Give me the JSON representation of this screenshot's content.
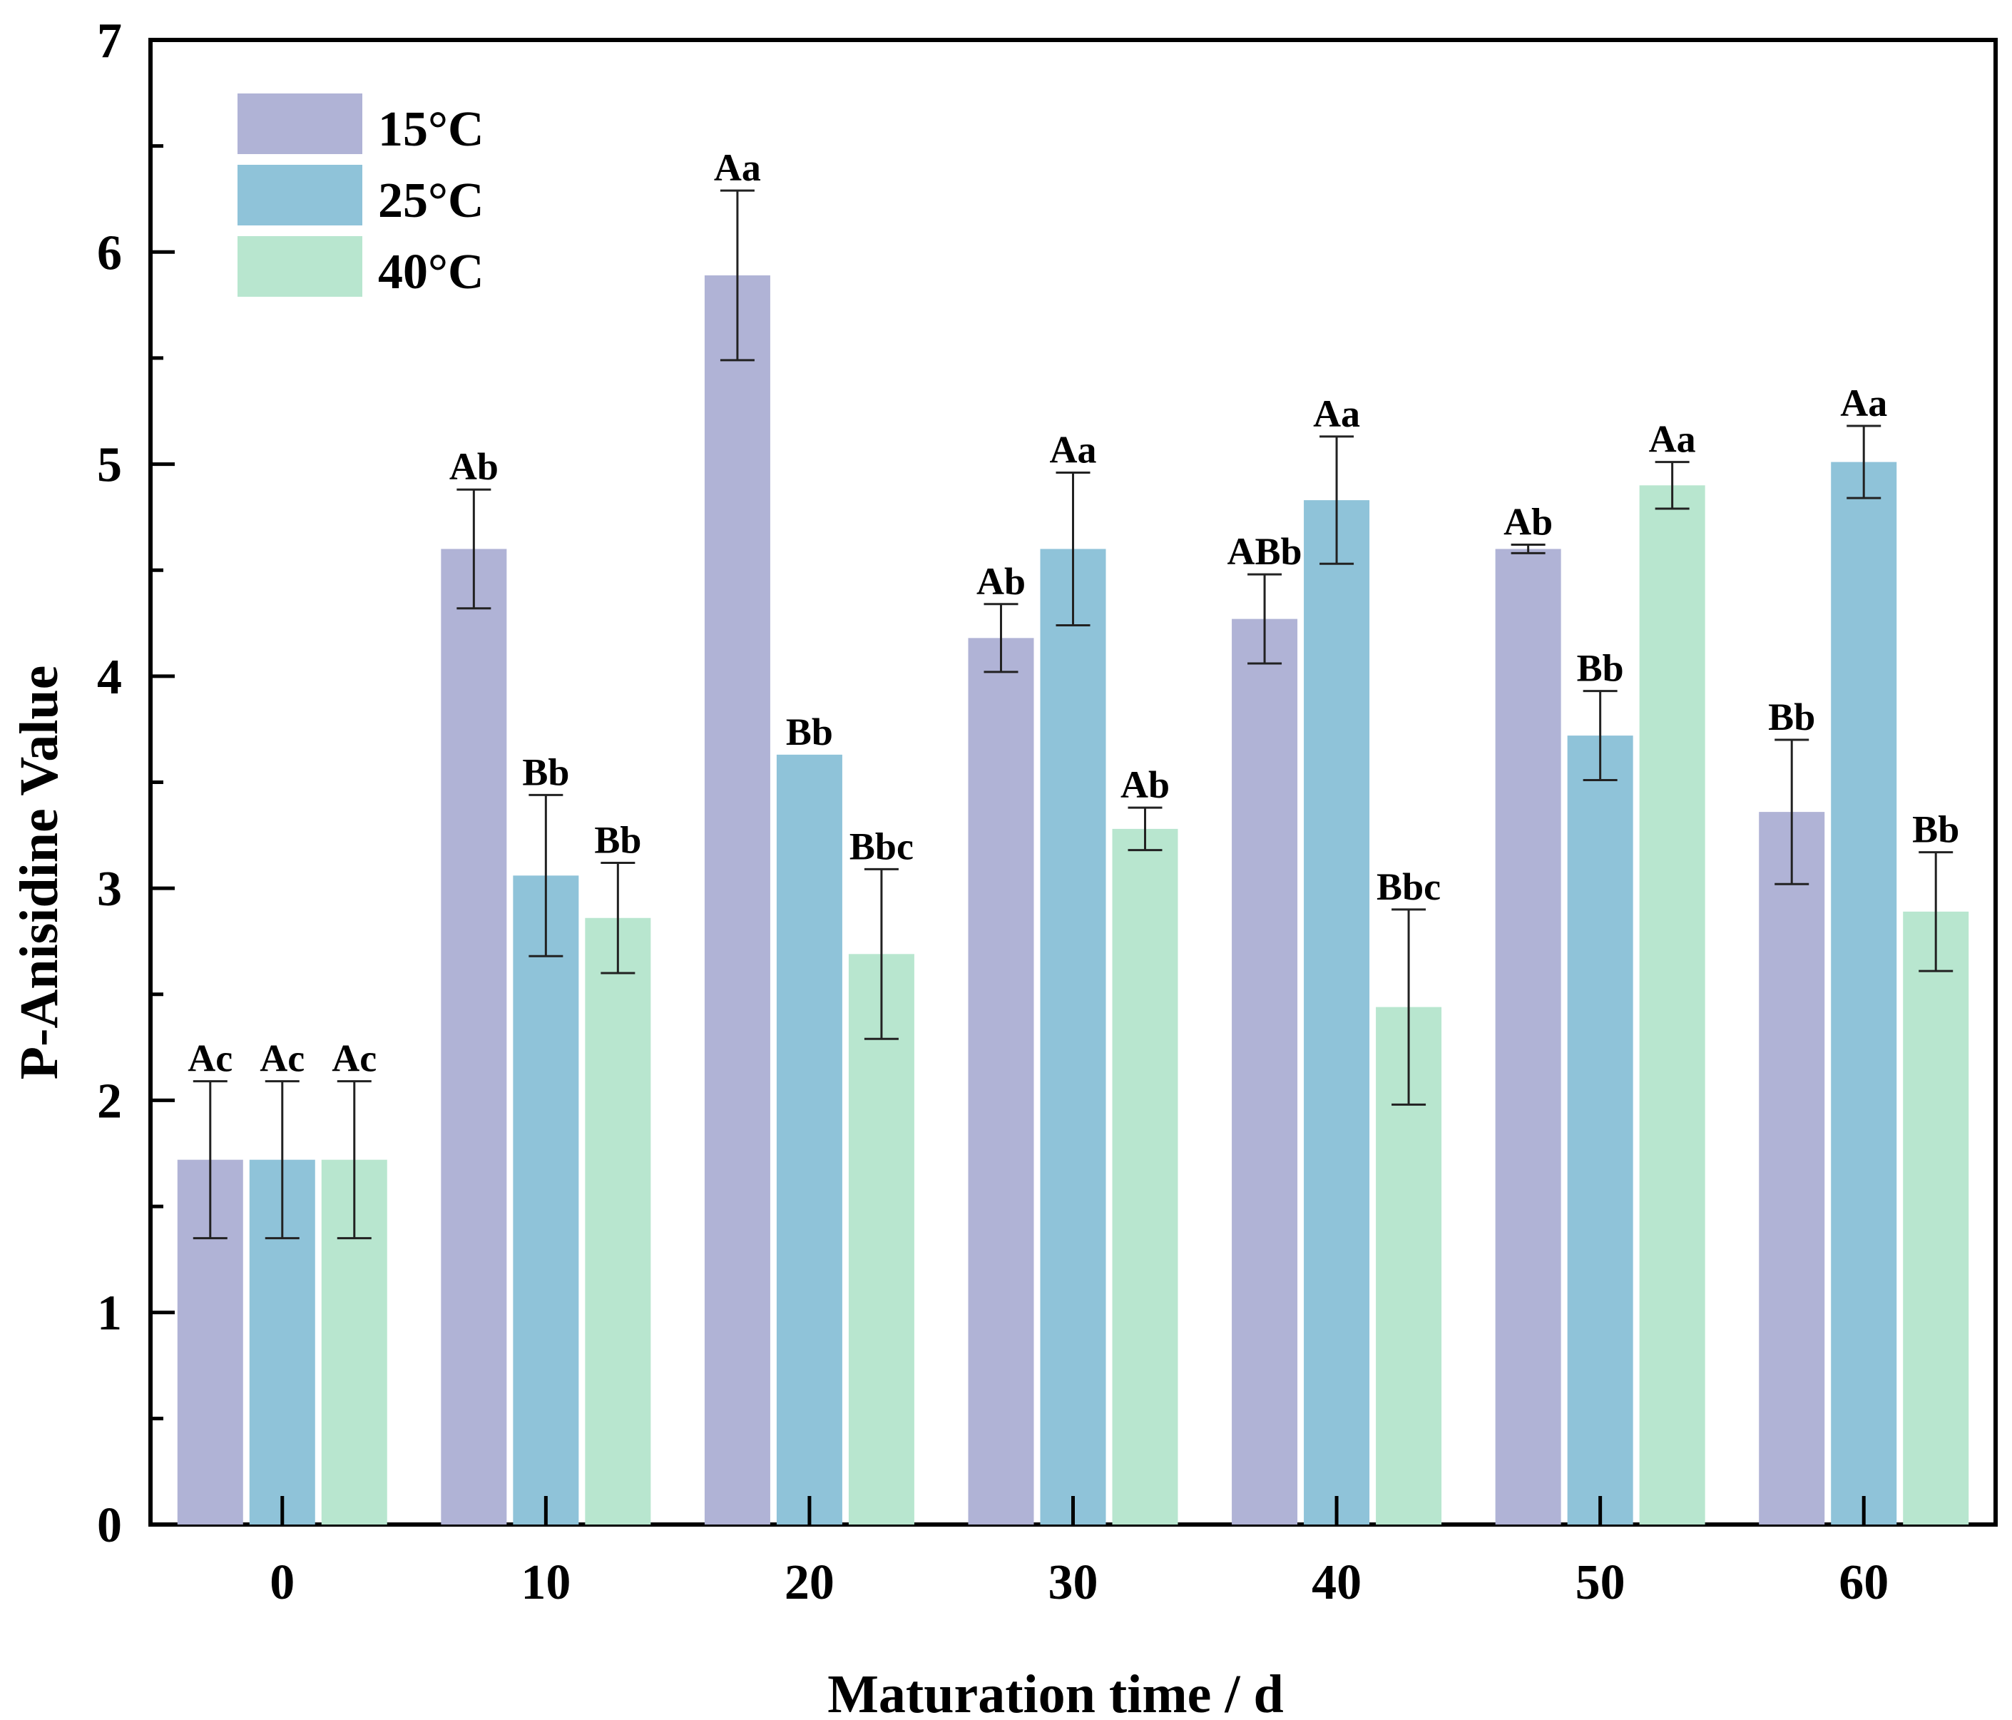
{
  "chart_data": {
    "type": "bar",
    "title": "",
    "xlabel": "Maturation time / d",
    "ylabel": "P-Anisidine Value",
    "categories": [
      "0",
      "10",
      "20",
      "30",
      "40",
      "50",
      "60"
    ],
    "ylim": [
      0,
      7
    ],
    "yticks": [
      "0",
      "1",
      "2",
      "3",
      "4",
      "5",
      "6",
      "7"
    ],
    "legend_position": "top-left",
    "series": [
      {
        "name": "15°C",
        "color": "#b0b3d6",
        "values": [
          1.72,
          4.6,
          5.89,
          4.18,
          4.27,
          4.6,
          3.36
        ],
        "errors": [
          0.37,
          0.28,
          0.4,
          0.16,
          0.21,
          0.02,
          0.34
        ],
        "labels": [
          "Ac",
          "Ab",
          "Aa",
          "Ab",
          "ABb",
          "Ab",
          "Bb"
        ]
      },
      {
        "name": "25°C",
        "color": "#8fc3d9",
        "values": [
          1.72,
          3.06,
          3.63,
          4.6,
          4.83,
          3.72,
          5.01
        ],
        "errors": [
          0.37,
          0.38,
          0.0,
          0.36,
          0.3,
          0.21,
          0.17
        ],
        "labels": [
          "Ac",
          "Bb",
          "Bb",
          "Aa",
          "Aa",
          "Bb",
          "Aa"
        ]
      },
      {
        "name": "40°C",
        "color": "#b8e6cf",
        "values": [
          1.72,
          2.86,
          2.69,
          3.28,
          2.44,
          4.9,
          2.89
        ],
        "errors": [
          0.37,
          0.26,
          0.4,
          0.1,
          0.46,
          0.11,
          0.28
        ],
        "labels": [
          "Ac",
          "Bb",
          "Bbc",
          "Ab",
          "Bbc",
          "Aa",
          "Bb"
        ]
      }
    ]
  }
}
